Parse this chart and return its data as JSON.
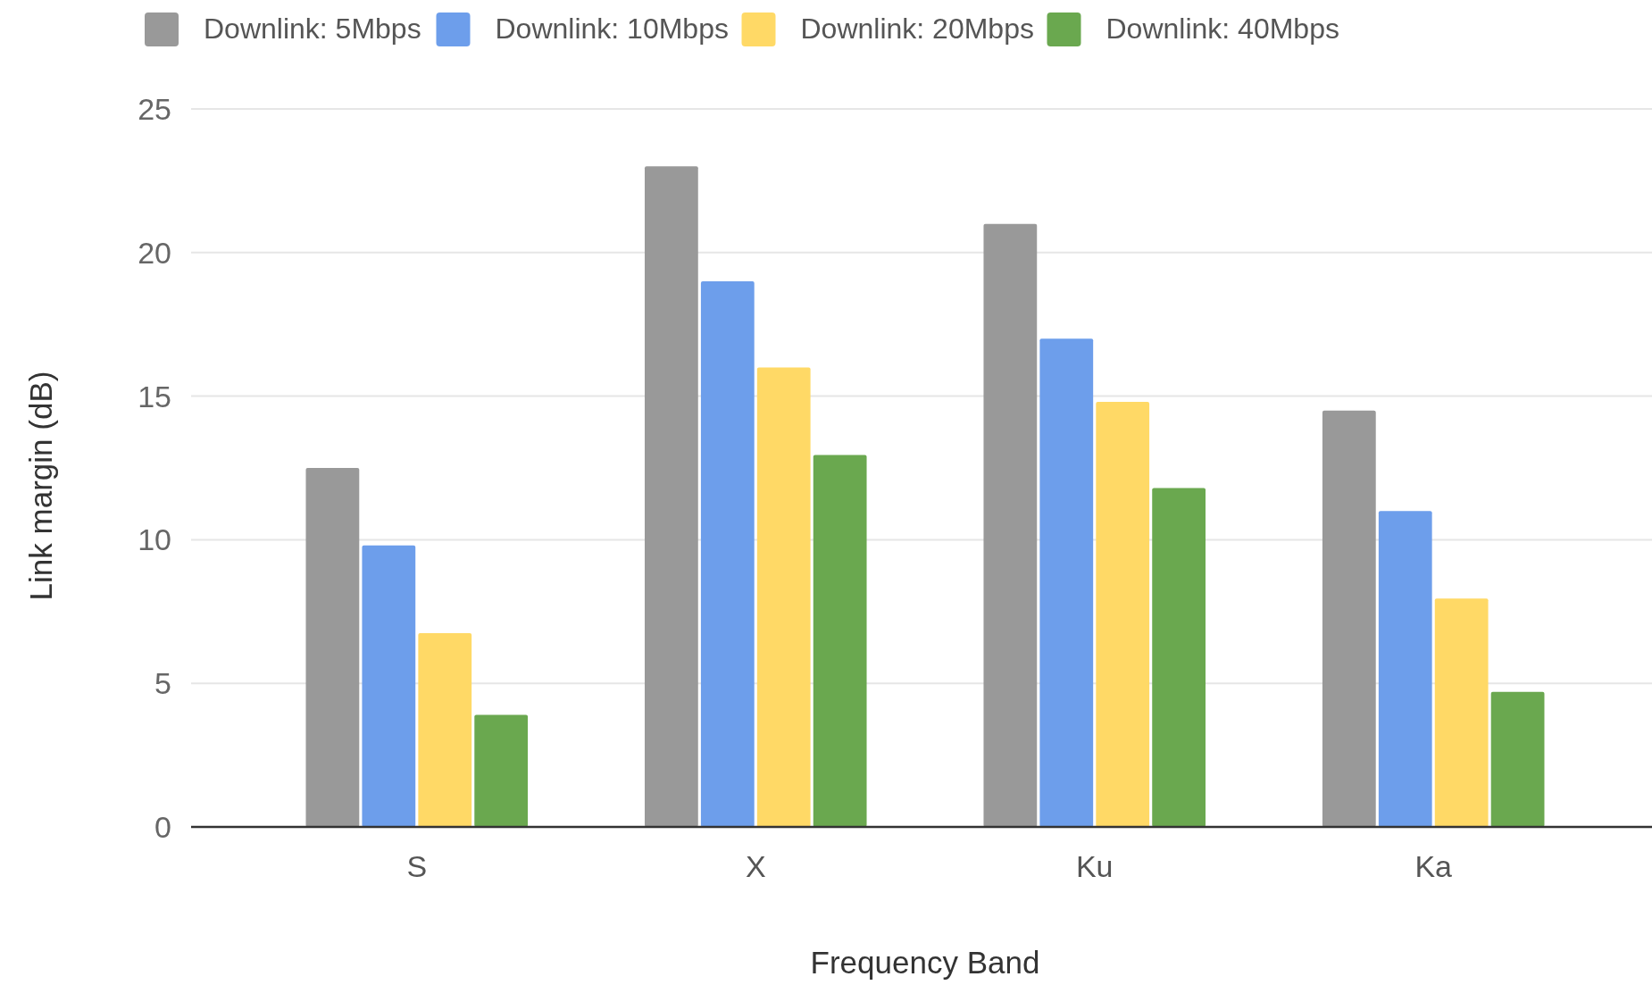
{
  "chart_data": {
    "type": "bar",
    "xlabel": "Frequency Band",
    "ylabel": "Link margin (dB)",
    "categories": [
      "S",
      "X",
      "Ku",
      "Ka"
    ],
    "series": [
      {
        "name": "Downlink: 5Mbps",
        "color": "#999999",
        "values": [
          12.5,
          23,
          21,
          14.5
        ]
      },
      {
        "name": "Downlink: 10Mbps",
        "color": "#6d9eeb",
        "values": [
          9.8,
          19,
          17,
          11
        ]
      },
      {
        "name": "Downlink: 20Mbps",
        "color": "#ffd966",
        "values": [
          6.75,
          16,
          14.8,
          7.95
        ]
      },
      {
        "name": "Downlink: 40Mbps",
        "color": "#6aa84f",
        "values": [
          3.9,
          12.95,
          11.8,
          4.7
        ]
      }
    ],
    "ylim": [
      0,
      25
    ],
    "yticks": [
      0,
      5,
      10,
      15,
      20,
      25
    ],
    "grid": "y",
    "legend": "top"
  }
}
